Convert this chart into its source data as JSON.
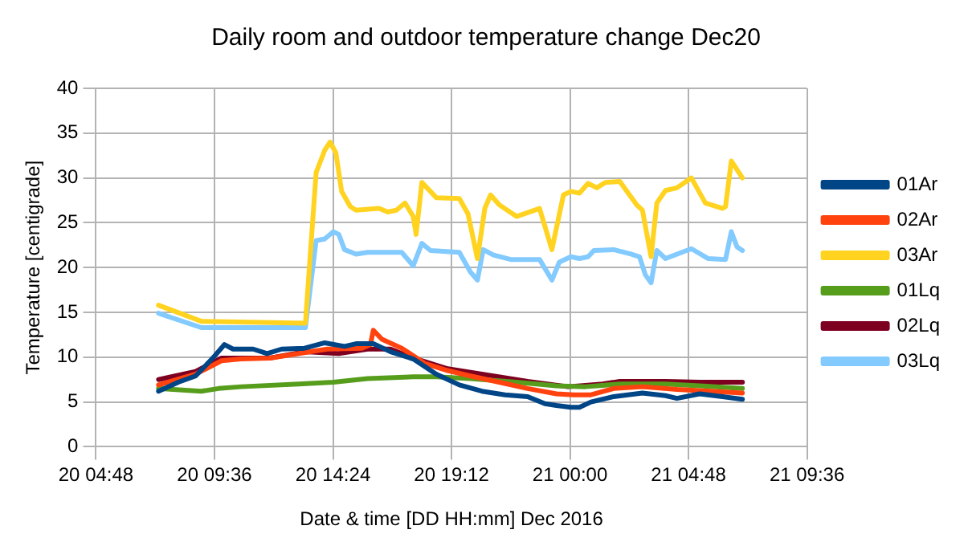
{
  "chart_data": {
    "type": "line",
    "title": "Daily room and outdoor temperature change Dec20",
    "xlabel": "Date & time [DD HH:mm] Dec 2016",
    "ylabel": "Temperature [centigrade]",
    "xlim": [
      "2016-12-20T04:48",
      "2016-12-21T09:36"
    ],
    "xticks": [
      {
        "value": "2016-12-20T04:48",
        "label": "20 04:48"
      },
      {
        "value": "2016-12-20T09:36",
        "label": "20 09:36"
      },
      {
        "value": "2016-12-20T14:24",
        "label": "20 14:24"
      },
      {
        "value": "2016-12-20T19:12",
        "label": "20 19:12"
      },
      {
        "value": "2016-12-21T00:00",
        "label": "21 00:00"
      },
      {
        "value": "2016-12-21T04:48",
        "label": "21 04:48"
      },
      {
        "value": "2016-12-21T09:36",
        "label": "21 09:36"
      }
    ],
    "ylim": [
      0,
      40
    ],
    "yticks": [
      0,
      5,
      10,
      15,
      20,
      25,
      30,
      35,
      40
    ],
    "grid": true,
    "legend": "right",
    "marker": "none",
    "line_style": "solid",
    "series": [
      {
        "name": "01Ar",
        "color": "#004586",
        "x": [
          "2016-12-20T07:20",
          "2016-12-20T08:08",
          "2016-12-20T08:50",
          "2016-12-20T09:32",
          "2016-12-20T10:00",
          "2016-12-20T10:21",
          "2016-12-20T11:10",
          "2016-12-20T11:44",
          "2016-12-20T12:19",
          "2016-12-20T13:15",
          "2016-12-20T14:04",
          "2016-12-20T14:52",
          "2016-12-20T15:20",
          "2016-12-20T16:02",
          "2016-12-20T16:44",
          "2016-12-20T17:39",
          "2016-12-20T18:35",
          "2016-12-20T19:31",
          "2016-12-20T20:26",
          "2016-12-20T21:22",
          "2016-12-20T22:17",
          "2016-12-20T22:59",
          "2016-12-20T23:27",
          "2016-12-21T00:02",
          "2016-12-21T00:23",
          "2016-12-21T00:51",
          "2016-12-21T01:46",
          "2016-12-21T02:56",
          "2016-12-21T03:52",
          "2016-12-21T04:20",
          "2016-12-21T05:15",
          "2016-12-21T06:11",
          "2016-12-21T06:59"
        ],
        "values": [
          6.2,
          7.2,
          7.9,
          9.9,
          11.4,
          10.9,
          10.9,
          10.4,
          10.9,
          11.0,
          11.6,
          11.2,
          11.5,
          11.5,
          10.6,
          9.8,
          8.1,
          6.9,
          6.2,
          5.8,
          5.6,
          4.8,
          4.6,
          4.4,
          4.4,
          5.0,
          5.6,
          6.0,
          5.7,
          5.4,
          5.9,
          5.6,
          5.3
        ]
      },
      {
        "name": "02Ar",
        "color": "#ff420e",
        "x": [
          "2016-12-20T07:20",
          "2016-12-20T08:50",
          "2016-12-20T09:53",
          "2016-12-20T10:41",
          "2016-12-20T11:51",
          "2016-12-20T13:01",
          "2016-12-20T14:10",
          "2016-12-20T15:34",
          "2016-12-20T15:55",
          "2016-12-20T16:02",
          "2016-12-20T16:23",
          "2016-12-20T17:11",
          "2016-12-20T18:07",
          "2016-12-20T19:03",
          "2016-12-20T19:58",
          "2016-12-20T21:08",
          "2016-12-20T22:17",
          "2016-12-20T23:27",
          "2016-12-21T00:09",
          "2016-12-21T00:51",
          "2016-12-21T01:46",
          "2016-12-21T02:56",
          "2016-12-21T04:20",
          "2016-12-21T05:43",
          "2016-12-21T06:59"
        ],
        "values": [
          6.9,
          8.1,
          9.6,
          9.8,
          9.9,
          10.4,
          10.9,
          11.0,
          11.4,
          13.0,
          12.0,
          11.0,
          9.3,
          8.5,
          7.9,
          7.2,
          6.5,
          5.9,
          5.8,
          5.8,
          6.5,
          6.7,
          6.4,
          6.2,
          6.0
        ]
      },
      {
        "name": "03Ar",
        "color": "#ffd320",
        "x": [
          "2016-12-20T07:20",
          "2016-12-20T09:04",
          "2016-12-20T13:17",
          "2016-12-20T13:43",
          "2016-12-20T14:04",
          "2016-12-20T14:17",
          "2016-12-20T14:31",
          "2016-12-20T14:45",
          "2016-12-20T15:06",
          "2016-12-20T15:20",
          "2016-12-20T16:16",
          "2016-12-20T16:37",
          "2016-12-20T16:58",
          "2016-12-20T17:19",
          "2016-12-20T17:39",
          "2016-12-20T17:46",
          "2016-12-20T18:00",
          "2016-12-20T18:35",
          "2016-12-20T19:31",
          "2016-12-20T19:52",
          "2016-12-20T20:15",
          "2016-12-20T20:33",
          "2016-12-20T20:47",
          "2016-12-20T21:08",
          "2016-12-20T21:50",
          "2016-12-20T22:46",
          "2016-12-20T23:16",
          "2016-12-20T23:44",
          "2016-12-21T00:02",
          "2016-12-21T00:23",
          "2016-12-21T00:44",
          "2016-12-21T01:05",
          "2016-12-21T01:26",
          "2016-12-21T02:01",
          "2016-12-21T02:42",
          "2016-12-21T02:56",
          "2016-12-21T03:17",
          "2016-12-21T03:31",
          "2016-12-21T03:52",
          "2016-12-21T04:20",
          "2016-12-21T04:55",
          "2016-12-21T05:29",
          "2016-12-21T06:11",
          "2016-12-21T06:18",
          "2016-12-21T06:32",
          "2016-12-21T06:59"
        ],
        "values": [
          15.8,
          14.0,
          13.8,
          30.6,
          33.1,
          34.0,
          32.8,
          28.5,
          26.8,
          26.4,
          26.6,
          26.2,
          26.4,
          27.2,
          25.7,
          23.7,
          29.5,
          27.8,
          27.7,
          26.0,
          21.0,
          26.6,
          28.1,
          27.0,
          25.7,
          26.6,
          22.0,
          28.1,
          28.5,
          28.3,
          29.4,
          28.9,
          29.5,
          29.6,
          27.0,
          26.4,
          21.2,
          27.2,
          28.6,
          28.9,
          30.0,
          27.2,
          26.6,
          26.8,
          31.9,
          30.0
        ]
      },
      {
        "name": "01Lq",
        "color": "#579d1c",
        "x": [
          "2016-12-20T07:20",
          "2016-12-20T07:55",
          "2016-12-20T09:04",
          "2016-12-20T09:46",
          "2016-12-20T10:41",
          "2016-12-20T13:01",
          "2016-12-20T14:25",
          "2016-12-20T15:48",
          "2016-12-20T17:39",
          "2016-12-20T18:35",
          "2016-12-20T19:58",
          "2016-12-20T21:50",
          "2016-12-20T23:27",
          "2016-12-21T00:37",
          "2016-12-21T02:01",
          "2016-12-21T03:52",
          "2016-12-21T05:15",
          "2016-12-21T06:59"
        ],
        "values": [
          6.5,
          6.4,
          6.2,
          6.5,
          6.7,
          7.0,
          7.2,
          7.6,
          7.8,
          7.8,
          7.6,
          7.2,
          6.8,
          6.7,
          7.0,
          7.0,
          6.8,
          6.5
        ]
      },
      {
        "name": "02Lq",
        "color": "#7e0021",
        "x": [
          "2016-12-20T07:20",
          "2016-12-20T08:50",
          "2016-12-20T09:53",
          "2016-12-20T10:41",
          "2016-12-20T11:51",
          "2016-12-20T13:15",
          "2016-12-20T14:38",
          "2016-12-20T15:48",
          "2016-12-20T16:44",
          "2016-12-20T17:39",
          "2016-12-20T19:03",
          "2016-12-20T20:26",
          "2016-12-20T22:17",
          "2016-12-20T23:55",
          "2016-12-21T01:19",
          "2016-12-21T02:01",
          "2016-12-21T03:52",
          "2016-12-21T05:15",
          "2016-12-21T06:59"
        ],
        "values": [
          7.5,
          8.4,
          9.9,
          9.9,
          9.9,
          10.6,
          10.4,
          10.9,
          10.9,
          9.9,
          8.7,
          8.1,
          7.3,
          6.7,
          7.0,
          7.3,
          7.3,
          7.2,
          7.2
        ]
      },
      {
        "name": "03Lq",
        "color": "#83caff",
        "x": [
          "2016-12-20T07:20",
          "2016-12-20T09:04",
          "2016-12-20T13:17",
          "2016-12-20T13:43",
          "2016-12-20T14:04",
          "2016-12-20T14:25",
          "2016-12-20T14:38",
          "2016-12-20T14:52",
          "2016-12-20T15:20",
          "2016-12-20T15:48",
          "2016-12-20T17:11",
          "2016-12-20T17:39",
          "2016-12-20T18:00",
          "2016-12-20T18:21",
          "2016-12-20T19:31",
          "2016-12-20T19:58",
          "2016-12-20T20:15",
          "2016-12-20T20:29",
          "2016-12-20T20:54",
          "2016-12-20T21:36",
          "2016-12-20T22:46",
          "2016-12-20T23:16",
          "2016-12-20T23:34",
          "2016-12-21T00:02",
          "2016-12-21T00:23",
          "2016-12-21T00:44",
          "2016-12-21T00:58",
          "2016-12-21T01:46",
          "2016-12-21T02:28",
          "2016-12-21T02:49",
          "2016-12-21T03:03",
          "2016-12-21T03:17",
          "2016-12-21T03:31",
          "2016-12-21T03:52",
          "2016-12-21T04:55",
          "2016-12-21T05:36",
          "2016-12-21T06:18",
          "2016-12-21T06:32",
          "2016-12-21T06:46",
          "2016-12-21T06:59"
        ],
        "values": [
          14.9,
          13.3,
          13.3,
          23.0,
          23.2,
          24.0,
          23.7,
          22.0,
          21.5,
          21.7,
          21.7,
          20.2,
          22.7,
          21.9,
          21.7,
          19.5,
          18.6,
          22.0,
          21.4,
          20.9,
          20.9,
          18.6,
          20.6,
          21.2,
          21.0,
          21.2,
          21.9,
          22.0,
          21.5,
          21.2,
          19.2,
          18.3,
          21.9,
          21.0,
          22.1,
          21.0,
          20.9,
          24.0,
          22.3,
          21.9
        ]
      }
    ]
  }
}
